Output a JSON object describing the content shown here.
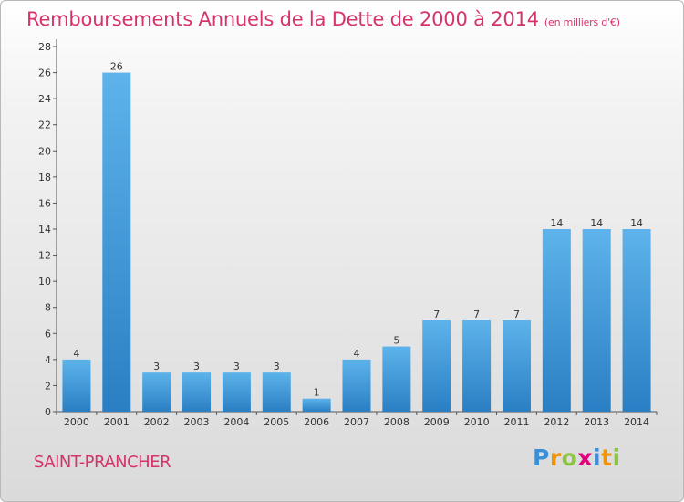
{
  "header": {
    "title": "Remboursements Annuels de la Dette de 2000 à 2014",
    "unit": "(en milliers d'€)"
  },
  "footer": {
    "city": "SAINT-PRANCHER",
    "logo": {
      "letters": [
        "P",
        "r",
        "o",
        "x",
        "i",
        "t",
        "i"
      ],
      "colors": [
        "#3a8fd6",
        "#f29400",
        "#8cc63f",
        "#e4007c",
        "#3a8fd6",
        "#f29400",
        "#8cc63f"
      ]
    }
  },
  "colors": {
    "bar_top": "#5db3ea",
    "bar_bottom": "#2a7fc4",
    "text_accent": "#d6336c"
  },
  "chart_data": {
    "type": "bar",
    "categories": [
      "2000",
      "2001",
      "2002",
      "2003",
      "2004",
      "2005",
      "2006",
      "2007",
      "2008",
      "2009",
      "2010",
      "2011",
      "2012",
      "2013",
      "2014"
    ],
    "values": [
      4,
      26,
      3,
      3,
      3,
      3,
      1,
      4,
      5,
      7,
      7,
      7,
      14,
      14,
      14
    ],
    "data_labels": [
      "4",
      "26",
      "3",
      "3",
      "3",
      "3",
      "1",
      "4",
      "5",
      "7",
      "7",
      "7",
      "14",
      "14",
      "14"
    ],
    "title": "Remboursements Annuels de la Dette de 2000 à 2014",
    "xlabel": "",
    "ylabel": "",
    "ylim": [
      0,
      28
    ],
    "yticks": [
      "0",
      "2",
      "4",
      "6",
      "8",
      "10",
      "12",
      "14",
      "16",
      "18",
      "20",
      "22",
      "24",
      "26",
      "28"
    ],
    "grid": false,
    "legend": "none"
  }
}
